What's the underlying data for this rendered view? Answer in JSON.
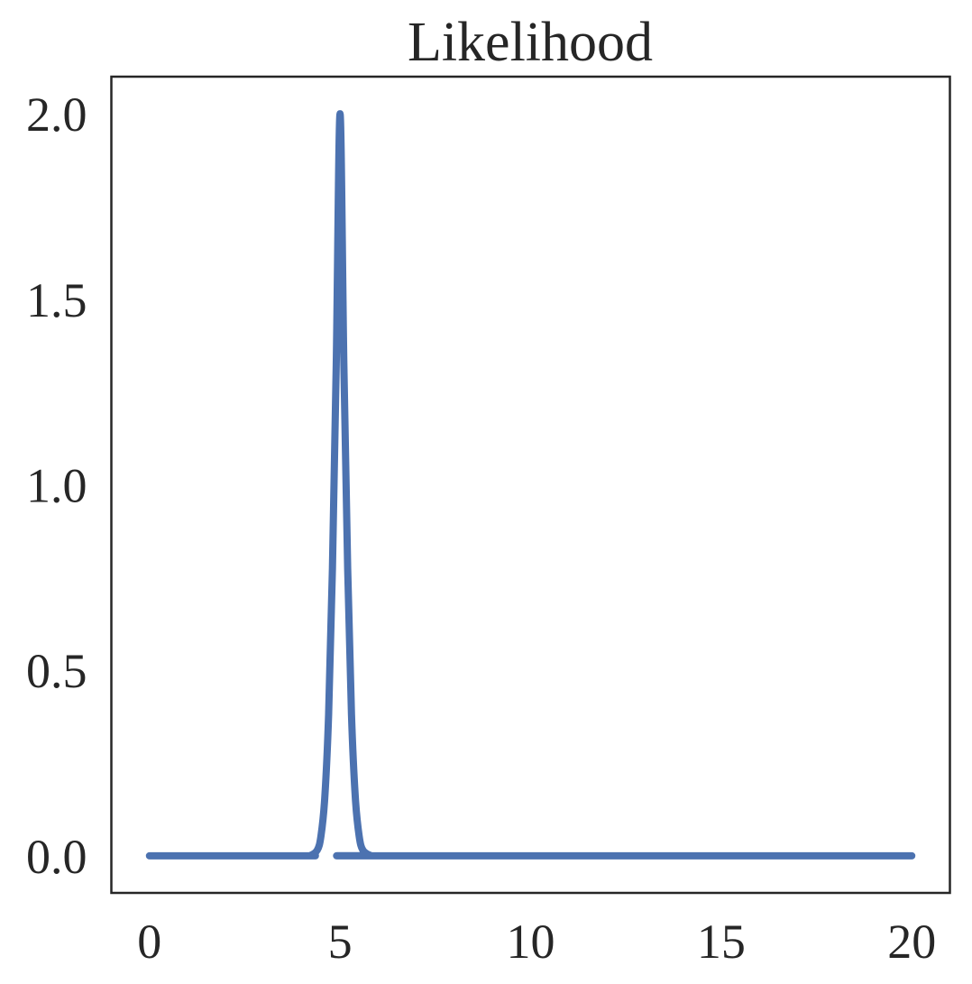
{
  "chart_data": {
    "type": "line",
    "title": "Likelihood",
    "xlabel": "",
    "ylabel": "",
    "xlim": [
      -1,
      21
    ],
    "ylim": [
      -0.1,
      2.1
    ],
    "xticks": [
      0,
      5,
      10,
      15,
      20
    ],
    "xtick_labels": [
      "0",
      "5",
      "10",
      "15",
      "20"
    ],
    "yticks": [
      0.0,
      0.5,
      1.0,
      1.5,
      2.0
    ],
    "ytick_labels": [
      "0.0",
      "0.5",
      "1.0",
      "1.5",
      "2.0"
    ],
    "grid": false,
    "legend": "none",
    "series": [
      {
        "color": "#4c72b0",
        "x": [
          0,
          4.0,
          4.2,
          4.4,
          4.5,
          4.6,
          4.7,
          4.8,
          4.9,
          5.0,
          5.1,
          5.2,
          5.3,
          5.4,
          5.5,
          5.6,
          5.8,
          6.0,
          20
        ],
        "y": [
          0.0,
          0.0,
          0.0,
          0.015,
          0.054,
          0.158,
          0.381,
          0.774,
          1.323,
          2.0,
          1.323,
          0.774,
          0.381,
          0.158,
          0.054,
          0.015,
          0.001,
          0.0,
          0.0
        ]
      }
    ]
  }
}
